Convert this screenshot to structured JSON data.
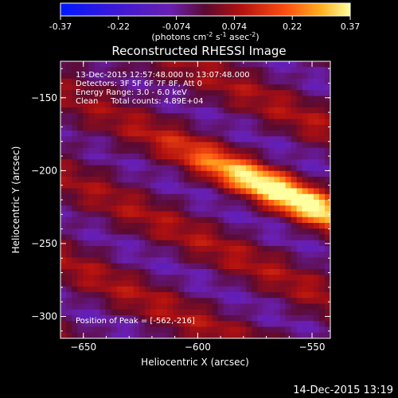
{
  "colorbar": {
    "ticks": [
      "-0.37",
      "-0.22",
      "-0.074",
      "0.074",
      "0.22",
      "0.37"
    ],
    "label_parts": [
      "(photons cm",
      "-2",
      " s",
      "-1",
      " asec",
      "-2",
      ")"
    ]
  },
  "chart_data": {
    "type": "heatmap",
    "title": "Reconstructed RHESSI Image",
    "xlabel": "Heliocentric X (arcsec)",
    "ylabel": "Heliocentric Y (arcsec)",
    "xlim": [
      -660,
      -542
    ],
    "ylim": [
      -315,
      -125
    ],
    "xticks": [
      -650,
      -600,
      -550,
      -500
    ],
    "yticks": [
      -150,
      -200,
      -250,
      -300
    ],
    "clim": [
      -0.37,
      0.37
    ],
    "peak": {
      "x": -562,
      "y": -216
    },
    "annotations": [
      "13-Dec-2015 12:57:48.000 to 13:07:48.000",
      "Detectors: 3F 5F 6F 7F 8F, Att 0",
      "Energy Range: 3.0 - 6.0 keV",
      "Clean     Total counts: 4.89E+04"
    ],
    "peak_label": "Position of Peak = [-562,-216]"
  },
  "footer": {
    "timestamp": "14-Dec-2015 13:19"
  }
}
